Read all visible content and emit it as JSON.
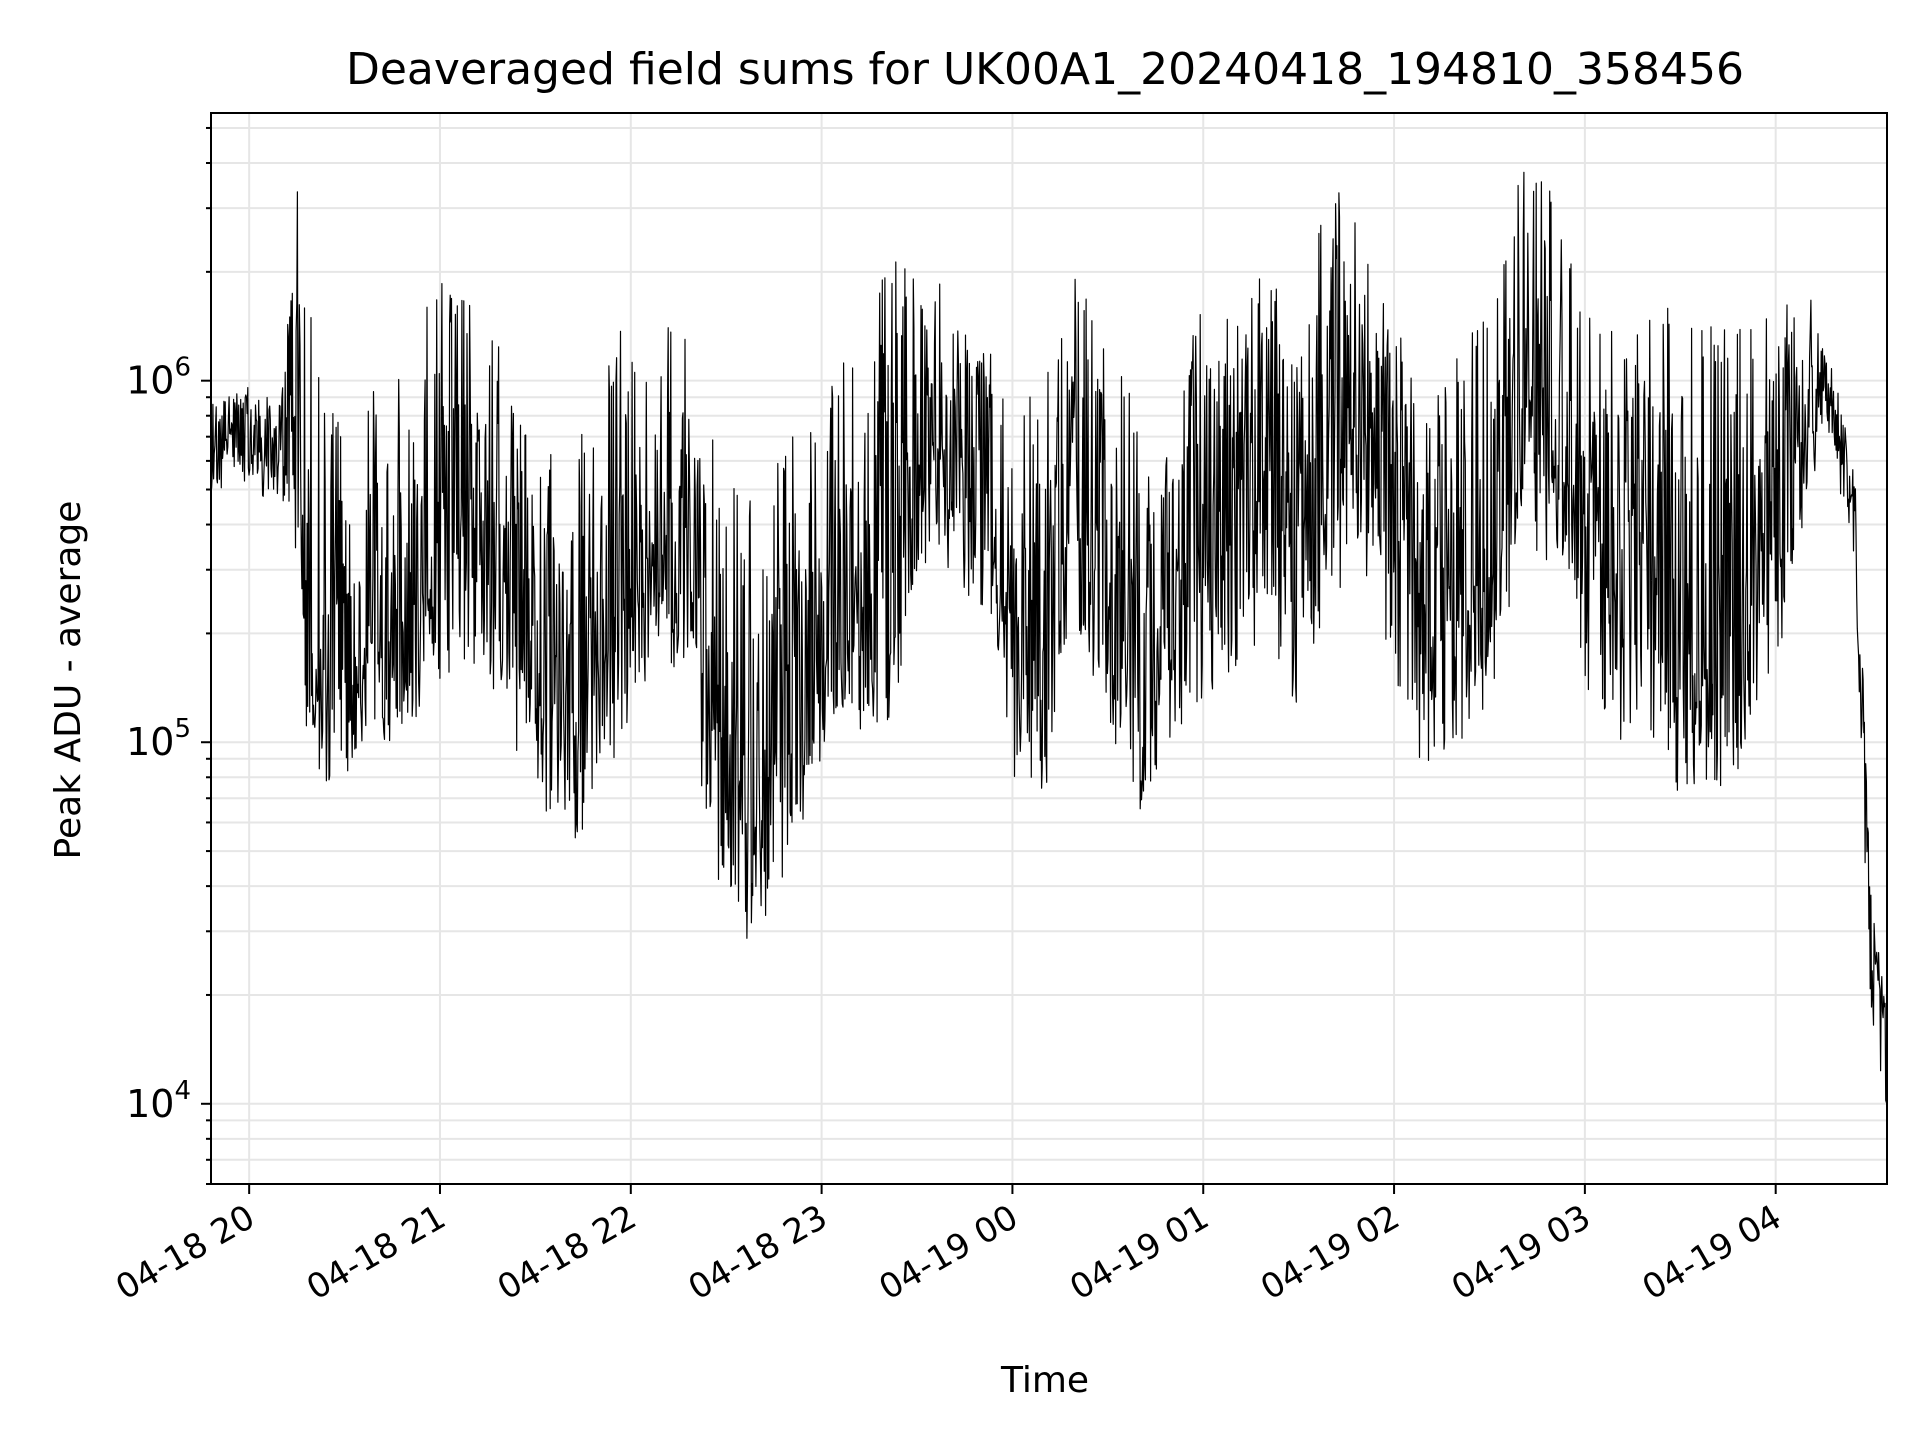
{
  "chart_data": {
    "type": "line",
    "title": "Deaveraged field sums for UK00A1_20240418_194810_358456",
    "xlabel": "Time",
    "ylabel": "Peak ADU - average",
    "yscale": "log",
    "ylim": [
      6000,
      5500000
    ],
    "xlim": [
      "2024-04-18T19:48",
      "2024-04-19T04:35"
    ],
    "grid": true,
    "line_color": "#000000",
    "x_ticks": [
      {
        "t": "2024-04-18T20:00",
        "label": "04-18 20"
      },
      {
        "t": "2024-04-18T21:00",
        "label": "04-18 21"
      },
      {
        "t": "2024-04-18T22:00",
        "label": "04-18 22"
      },
      {
        "t": "2024-04-18T23:00",
        "label": "04-18 23"
      },
      {
        "t": "2024-04-19T00:00",
        "label": "04-19 00"
      },
      {
        "t": "2024-04-19T01:00",
        "label": "04-19 01"
      },
      {
        "t": "2024-04-19T02:00",
        "label": "04-19 02"
      },
      {
        "t": "2024-04-19T03:00",
        "label": "04-19 03"
      },
      {
        "t": "2024-04-19T04:00",
        "label": "04-19 04"
      }
    ],
    "y_ticks": [
      {
        "value": 10000,
        "base": "10",
        "exp": "4"
      },
      {
        "value": 100000,
        "base": "10",
        "exp": "5"
      },
      {
        "value": 1000000,
        "base": "10",
        "exp": "6"
      }
    ],
    "series": [
      {
        "x": [
          "2024-04-18T19:48",
          "2024-04-18T20:00",
          "2024-04-18T20:10",
          "2024-04-18T20:15",
          "2024-04-18T20:18",
          "2024-04-18T20:25",
          "2024-04-18T20:30",
          "2024-04-18T20:40",
          "2024-04-18T20:45",
          "2024-04-18T21:00",
          "2024-04-18T21:10",
          "2024-04-18T21:20",
          "2024-04-18T21:30",
          "2024-04-18T21:40",
          "2024-04-18T21:50",
          "2024-04-18T22:00",
          "2024-04-18T22:10",
          "2024-04-18T22:20",
          "2024-04-18T22:30",
          "2024-04-18T22:40",
          "2024-04-18T22:50",
          "2024-04-18T23:00",
          "2024-04-18T23:10",
          "2024-04-18T23:20",
          "2024-04-18T23:30",
          "2024-04-18T23:40",
          "2024-04-18T23:50",
          "2024-04-19T00:00",
          "2024-04-19T00:10",
          "2024-04-19T00:20",
          "2024-04-19T00:30",
          "2024-04-19T00:40",
          "2024-04-19T00:50",
          "2024-04-19T01:00",
          "2024-04-19T01:10",
          "2024-04-19T01:20",
          "2024-04-19T01:30",
          "2024-04-19T01:40",
          "2024-04-19T01:50",
          "2024-04-19T02:00",
          "2024-04-19T02:10",
          "2024-04-19T02:20",
          "2024-04-19T02:30",
          "2024-04-19T02:40",
          "2024-04-19T02:50",
          "2024-04-19T03:00",
          "2024-04-19T03:10",
          "2024-04-19T03:20",
          "2024-04-19T03:30",
          "2024-04-19T03:40",
          "2024-04-19T03:50",
          "2024-04-19T04:00",
          "2024-04-19T04:10",
          "2024-04-19T04:15",
          "2024-04-19T04:20",
          "2024-04-19T04:25",
          "2024-04-19T04:30",
          "2024-04-19T04:35"
        ],
        "center": [
          700000,
          720000,
          650000,
          1000000,
          180000,
          160000,
          140000,
          200000,
          190000,
          350000,
          380000,
          300000,
          160000,
          120000,
          180000,
          280000,
          400000,
          250000,
          90000,
          70000,
          110000,
          180000,
          220000,
          300000,
          600000,
          700000,
          500000,
          250000,
          200000,
          500000,
          250000,
          120000,
          220000,
          350000,
          500000,
          550000,
          450000,
          700000,
          800000,
          500000,
          200000,
          250000,
          300000,
          900000,
          700000,
          400000,
          300000,
          350000,
          200000,
          150000,
          250000,
          400000,
          700000,
          1000000,
          700000,
          400000,
          30000,
          15000
        ],
        "low": [
          450000,
          500000,
          420000,
          330000,
          90000,
          75000,
          70000,
          90000,
          80000,
          130000,
          150000,
          110000,
          75000,
          45000,
          70000,
          120000,
          170000,
          100000,
          30000,
          28000,
          40000,
          90000,
          110000,
          90000,
          250000,
          300000,
          220000,
          80000,
          60000,
          170000,
          90000,
          58000,
          80000,
          130000,
          150000,
          200000,
          120000,
          250000,
          300000,
          120000,
          80000,
          100000,
          120000,
          350000,
          300000,
          120000,
          100000,
          100000,
          70000,
          55000,
          80000,
          120000,
          400000,
          700000,
          500000,
          250000,
          15000,
          8000
        ],
        "high": [
          950000,
          1050000,
          950000,
          3800000,
          1800000,
          900000,
          700000,
          1000000,
          1000000,
          2000000,
          1600000,
          1200000,
          700000,
          600000,
          900000,
          1800000,
          1600000,
          1200000,
          650000,
          500000,
          700000,
          900000,
          1300000,
          2200000,
          2000000,
          1800000,
          1500000,
          1000000,
          1000000,
          2100000,
          1300000,
          800000,
          1000000,
          1600000,
          1800000,
          2200000,
          1500000,
          3900000,
          2500000,
          1500000,
          900000,
          1200000,
          1600000,
          4000000,
          3500000,
          1800000,
          1300000,
          1500000,
          1700000,
          1400000,
          1500000,
          1500000,
          1900000,
          1400000,
          1000000,
          600000,
          40000,
          20000
        ]
      }
    ]
  }
}
